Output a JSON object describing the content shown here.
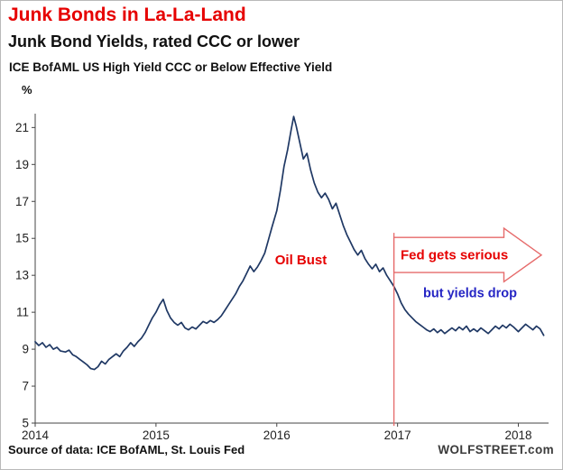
{
  "header": {
    "title": "Junk Bonds in La-La-Land",
    "subtitle": "Junk Bond Yields, rated CCC or lower",
    "series_label": "ICE BofAML US High Yield CCC or Below Effective Yield"
  },
  "footer": {
    "source": "Source of data: ICE BofAML, St. Louis Fed",
    "brand": "WOLFSTREET.com"
  },
  "colors": {
    "title_red": "#e60000",
    "line": "#1f3864",
    "axis": "#444444",
    "event_red": "#e66a6a",
    "annotation_red": "#e60000",
    "annotation_blue": "#2525c4"
  },
  "chart_data": {
    "type": "line",
    "title": "ICE BofAML US High Yield CCC or Below Effective Yield",
    "xlabel": "",
    "ylabel": "%",
    "grid": false,
    "xlim": [
      2014,
      2018.25
    ],
    "ylim": [
      5,
      21.75
    ],
    "x_ticks": [
      2014,
      2015,
      2016,
      2017,
      2018
    ],
    "y_ticks": [
      5,
      7,
      9,
      11,
      13,
      15,
      17,
      19,
      21
    ],
    "series": [
      {
        "name": "ICE BofAML US High Yield CCC or Below Effective Yield",
        "color": "#1f3864",
        "points": [
          [
            2014.0,
            9.4
          ],
          [
            2014.03,
            9.2
          ],
          [
            2014.06,
            9.35
          ],
          [
            2014.09,
            9.1
          ],
          [
            2014.12,
            9.25
          ],
          [
            2014.15,
            9.0
          ],
          [
            2014.18,
            9.1
          ],
          [
            2014.21,
            8.9
          ],
          [
            2014.25,
            8.85
          ],
          [
            2014.28,
            8.95
          ],
          [
            2014.31,
            8.7
          ],
          [
            2014.34,
            8.6
          ],
          [
            2014.37,
            8.45
          ],
          [
            2014.4,
            8.3
          ],
          [
            2014.43,
            8.15
          ],
          [
            2014.46,
            7.95
          ],
          [
            2014.49,
            7.9
          ],
          [
            2014.52,
            8.05
          ],
          [
            2014.55,
            8.35
          ],
          [
            2014.58,
            8.2
          ],
          [
            2014.61,
            8.45
          ],
          [
            2014.64,
            8.6
          ],
          [
            2014.67,
            8.75
          ],
          [
            2014.7,
            8.6
          ],
          [
            2014.73,
            8.9
          ],
          [
            2014.76,
            9.1
          ],
          [
            2014.79,
            9.35
          ],
          [
            2014.82,
            9.15
          ],
          [
            2014.85,
            9.4
          ],
          [
            2014.88,
            9.6
          ],
          [
            2014.91,
            9.9
          ],
          [
            2014.94,
            10.3
          ],
          [
            2014.97,
            10.7
          ],
          [
            2015.0,
            11.0
          ],
          [
            2015.03,
            11.4
          ],
          [
            2015.06,
            11.7
          ],
          [
            2015.09,
            11.1
          ],
          [
            2015.12,
            10.7
          ],
          [
            2015.15,
            10.45
          ],
          [
            2015.18,
            10.3
          ],
          [
            2015.21,
            10.45
          ],
          [
            2015.24,
            10.15
          ],
          [
            2015.27,
            10.05
          ],
          [
            2015.3,
            10.2
          ],
          [
            2015.33,
            10.1
          ],
          [
            2015.36,
            10.3
          ],
          [
            2015.39,
            10.5
          ],
          [
            2015.42,
            10.4
          ],
          [
            2015.45,
            10.55
          ],
          [
            2015.48,
            10.45
          ],
          [
            2015.51,
            10.6
          ],
          [
            2015.54,
            10.8
          ],
          [
            2015.57,
            11.1
          ],
          [
            2015.6,
            11.4
          ],
          [
            2015.63,
            11.7
          ],
          [
            2015.66,
            12.0
          ],
          [
            2015.69,
            12.4
          ],
          [
            2015.72,
            12.7
          ],
          [
            2015.75,
            13.1
          ],
          [
            2015.78,
            13.5
          ],
          [
            2015.81,
            13.2
          ],
          [
            2015.84,
            13.45
          ],
          [
            2015.87,
            13.8
          ],
          [
            2015.9,
            14.2
          ],
          [
            2015.93,
            14.9
          ],
          [
            2015.96,
            15.6
          ],
          [
            2016.0,
            16.5
          ],
          [
            2016.03,
            17.6
          ],
          [
            2016.06,
            18.9
          ],
          [
            2016.09,
            19.8
          ],
          [
            2016.12,
            20.9
          ],
          [
            2016.14,
            21.6
          ],
          [
            2016.16,
            21.1
          ],
          [
            2016.19,
            20.2
          ],
          [
            2016.22,
            19.3
          ],
          [
            2016.25,
            19.6
          ],
          [
            2016.28,
            18.7
          ],
          [
            2016.31,
            18.0
          ],
          [
            2016.34,
            17.5
          ],
          [
            2016.37,
            17.2
          ],
          [
            2016.4,
            17.45
          ],
          [
            2016.43,
            17.1
          ],
          [
            2016.46,
            16.6
          ],
          [
            2016.49,
            16.9
          ],
          [
            2016.52,
            16.3
          ],
          [
            2016.55,
            15.7
          ],
          [
            2016.58,
            15.2
          ],
          [
            2016.61,
            14.8
          ],
          [
            2016.64,
            14.4
          ],
          [
            2016.67,
            14.1
          ],
          [
            2016.7,
            14.35
          ],
          [
            2016.73,
            13.9
          ],
          [
            2016.76,
            13.6
          ],
          [
            2016.79,
            13.35
          ],
          [
            2016.82,
            13.6
          ],
          [
            2016.85,
            13.2
          ],
          [
            2016.88,
            13.4
          ],
          [
            2016.91,
            13.0
          ],
          [
            2016.94,
            12.7
          ],
          [
            2016.97,
            12.4
          ],
          [
            2017.0,
            12.0
          ],
          [
            2017.03,
            11.5
          ],
          [
            2017.06,
            11.15
          ],
          [
            2017.09,
            10.9
          ],
          [
            2017.12,
            10.7
          ],
          [
            2017.15,
            10.5
          ],
          [
            2017.18,
            10.35
          ],
          [
            2017.21,
            10.2
          ],
          [
            2017.24,
            10.05
          ],
          [
            2017.27,
            9.95
          ],
          [
            2017.3,
            10.1
          ],
          [
            2017.33,
            9.9
          ],
          [
            2017.36,
            10.05
          ],
          [
            2017.39,
            9.85
          ],
          [
            2017.42,
            10.0
          ],
          [
            2017.45,
            10.15
          ],
          [
            2017.48,
            10.0
          ],
          [
            2017.51,
            10.2
          ],
          [
            2017.54,
            10.05
          ],
          [
            2017.57,
            10.25
          ],
          [
            2017.6,
            9.95
          ],
          [
            2017.63,
            10.1
          ],
          [
            2017.66,
            9.95
          ],
          [
            2017.69,
            10.15
          ],
          [
            2017.72,
            10.0
          ],
          [
            2017.75,
            9.85
          ],
          [
            2017.78,
            10.05
          ],
          [
            2017.81,
            10.25
          ],
          [
            2017.84,
            10.1
          ],
          [
            2017.87,
            10.3
          ],
          [
            2017.9,
            10.15
          ],
          [
            2017.93,
            10.35
          ],
          [
            2017.96,
            10.2
          ],
          [
            2018.0,
            9.95
          ],
          [
            2018.03,
            10.15
          ],
          [
            2018.06,
            10.35
          ],
          [
            2018.09,
            10.2
          ],
          [
            2018.12,
            10.05
          ],
          [
            2018.15,
            10.25
          ],
          [
            2018.18,
            10.1
          ],
          [
            2018.21,
            9.75
          ]
        ]
      }
    ],
    "event_line": {
      "x": 2016.97,
      "y_top": 15.3,
      "y_bottom": 4.85,
      "color": "#e66a6a"
    },
    "arrow": {
      "x_start": 2016.97,
      "head_x": 2017.88,
      "tip_x": 2018.19,
      "body_top": 15.05,
      "body_bottom": 13.15,
      "head_top": 15.55,
      "head_bottom": 12.65,
      "tip_y": 14.1,
      "color": "#e66a6a"
    },
    "annotations": [
      {
        "id": "oil-bust",
        "text": "Oil Bust",
        "x": 2016.2,
        "y": 13.85,
        "color": "red"
      },
      {
        "id": "fed-gets-serious",
        "text": "Fed gets serious",
        "x": 2017.47,
        "y": 14.1,
        "color": "red"
      },
      {
        "id": "but-yields-drop",
        "text": "but yields drop",
        "x": 2017.6,
        "y": 12.05,
        "color": "blue"
      }
    ]
  }
}
